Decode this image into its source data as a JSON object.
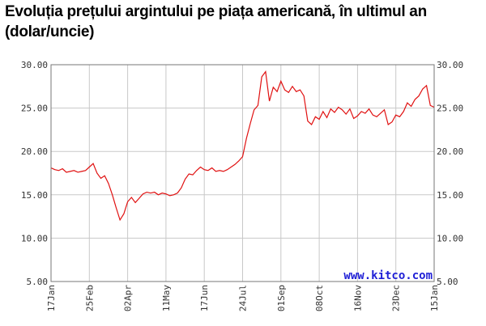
{
  "title": "Evoluția prețului argintului pe piața americană, în ultimul an (dolar/uncie)",
  "watermark": "www.kitco.com",
  "colors": {
    "line": "#e01010",
    "grid": "#c8c8c8",
    "axis": "#777777"
  },
  "chart_data": {
    "type": "line",
    "title": "Evoluția prețului argintului pe piața americană, în ultimul an (dolar/uncie)",
    "xlabel": "",
    "ylabel": "",
    "ylim": [
      5,
      30
    ],
    "yticks": [
      "30.00",
      "25.00",
      "20.00",
      "15.00",
      "10.00",
      "5.00"
    ],
    "xticks": [
      "17Jan",
      "25Feb",
      "02Apr",
      "11May",
      "17Jun",
      "24Jul",
      "01Sep",
      "08Oct",
      "16Nov",
      "23Dec",
      "15Jan"
    ],
    "grid": true,
    "y_axis_both_sides": true,
    "series": [
      {
        "name": "",
        "x": [
          0,
          1,
          2,
          3,
          4,
          5,
          6,
          7,
          8,
          9,
          10,
          11,
          12,
          13,
          14,
          15,
          16,
          17,
          18,
          19,
          20,
          21,
          22,
          23,
          24,
          25,
          26,
          27,
          28,
          29,
          30,
          31,
          32,
          33,
          34,
          35,
          36,
          37,
          38,
          39,
          40,
          41,
          42,
          43,
          44,
          45,
          46,
          47,
          48,
          49,
          50,
          51,
          52,
          53,
          54,
          55,
          56,
          57,
          58,
          59,
          60,
          61,
          62,
          63,
          64,
          65,
          66,
          67,
          68,
          69,
          70,
          71,
          72,
          73,
          74,
          75,
          76,
          77,
          78,
          79,
          80,
          81,
          82,
          83,
          84,
          85,
          86,
          87,
          88,
          89,
          90,
          91,
          92,
          93,
          94,
          95,
          96,
          97,
          98,
          99,
          100
        ],
        "values": [
          18.1,
          17.9,
          17.8,
          18.0,
          17.6,
          17.7,
          17.8,
          17.6,
          17.7,
          17.8,
          18.2,
          18.6,
          17.5,
          16.9,
          17.2,
          16.3,
          15.0,
          13.5,
          12.1,
          12.8,
          14.2,
          14.7,
          14.1,
          14.6,
          15.1,
          15.3,
          15.2,
          15.3,
          15.0,
          15.2,
          15.1,
          14.9,
          15.0,
          15.2,
          15.8,
          16.8,
          17.4,
          17.3,
          17.8,
          18.2,
          17.9,
          17.8,
          18.1,
          17.7,
          17.8,
          17.7,
          17.9,
          18.2,
          18.5,
          18.9,
          19.4,
          21.5,
          23.2,
          24.8,
          25.3,
          28.6,
          29.2,
          25.8,
          27.4,
          26.9,
          28.1,
          27.1,
          26.8,
          27.5,
          26.9,
          27.1,
          26.4,
          23.5,
          23.1,
          24.0,
          23.7,
          24.6,
          23.9,
          24.9,
          24.5,
          25.1,
          24.8,
          24.3,
          24.9,
          23.8,
          24.1,
          24.6,
          24.4,
          24.9,
          24.2,
          24.0,
          24.4,
          24.8,
          23.1,
          23.4,
          24.2,
          24.0,
          24.6,
          25.6,
          25.2,
          26.0,
          26.4,
          27.2,
          27.6,
          25.3,
          25.1
        ]
      }
    ]
  }
}
